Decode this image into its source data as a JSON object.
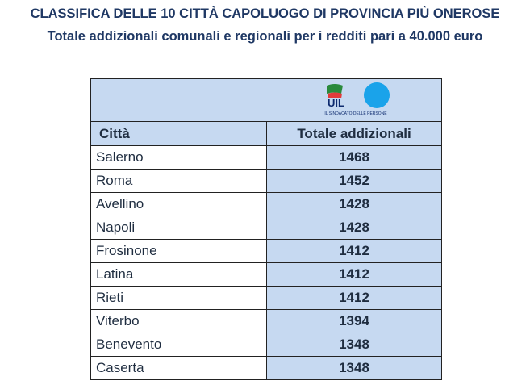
{
  "header": {
    "title": "CLASSIFICA DELLE 10 CITTÀ CAPOLUOGO DI PROVINCIA PIÙ ONEROSE",
    "subtitle": "Totale addizionali comunali e regionali per i redditi pari a 40.000 euro"
  },
  "logo": {
    "name": "UIL",
    "tagline": "IL SINDACATO DELLE PERSONE"
  },
  "table": {
    "columns": [
      "Città",
      "Totale addizionali"
    ],
    "rows": [
      [
        "Salerno",
        1468
      ],
      [
        "Roma",
        1452
      ],
      [
        "Avellino",
        1428
      ],
      [
        "Napoli",
        1428
      ],
      [
        "Frosinone",
        1412
      ],
      [
        "Latina",
        1412
      ],
      [
        "Rieti",
        1412
      ],
      [
        "Viterbo",
        1394
      ],
      [
        "Benevento",
        1348
      ],
      [
        "Caserta",
        1348
      ]
    ]
  }
}
